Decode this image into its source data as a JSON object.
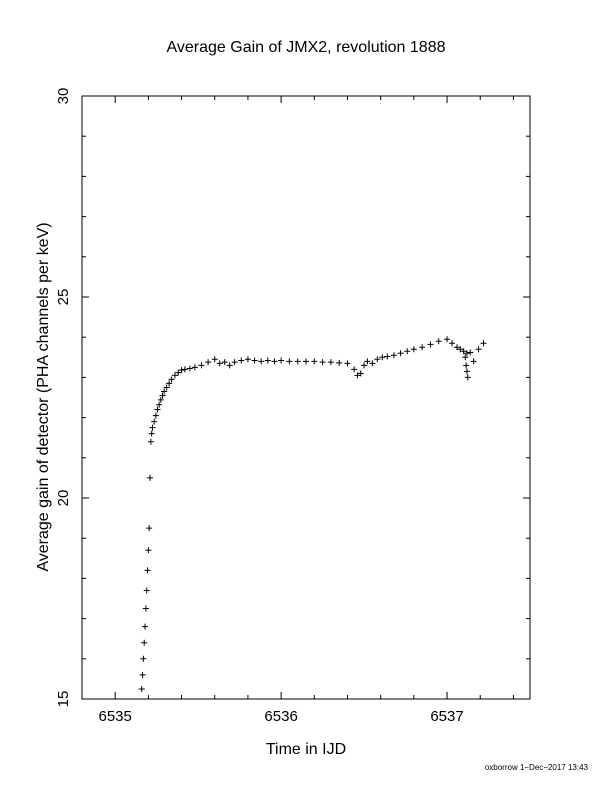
{
  "chart_data": {
    "type": "scatter",
    "title": "Average Gain of JMX2, revolution 1888",
    "xlabel": "Time in IJD",
    "ylabel": "Average gain of detector (PHA channels per keV)",
    "xlim": [
      6534.8,
      6537.5
    ],
    "ylim": [
      15,
      30
    ],
    "xticks": [
      6535,
      6536,
      6537
    ],
    "xtick_labels": [
      "6535",
      "6536",
      "6537"
    ],
    "yticks": [
      15,
      20,
      25,
      30
    ],
    "ytick_labels": [
      "15",
      "20",
      "25",
      "30"
    ],
    "marker": "plus",
    "grid": false,
    "color": "#000000",
    "series": [
      {
        "x": [
          6535.16,
          6535.165,
          6535.17,
          6535.175,
          6535.18,
          6535.185,
          6535.19,
          6535.195,
          6535.2,
          6535.205,
          6535.21,
          6535.215,
          6535.22,
          6535.225,
          6535.235,
          6535.245,
          6535.255,
          6535.265,
          6535.275,
          6535.285,
          6535.295,
          6535.31,
          6535.325,
          6535.34,
          6535.36,
          6535.38,
          6535.4,
          6535.42,
          6535.45,
          6535.48,
          6535.52,
          6535.56,
          6535.6,
          6535.63,
          6535.66,
          6535.69,
          6535.72,
          6535.76,
          6535.8,
          6535.84,
          6535.88,
          6535.92,
          6535.96,
          6536.0,
          6536.05,
          6536.1,
          6536.15,
          6536.2,
          6536.25,
          6536.3,
          6536.35,
          6536.4,
          6536.44,
          6536.46,
          6536.48,
          6536.5,
          6536.52,
          6536.55,
          6536.58,
          6536.61,
          6536.64,
          6536.68,
          6536.72,
          6536.76,
          6536.8,
          6536.85,
          6536.9,
          6536.95,
          6537.0,
          6537.03,
          6537.06,
          6537.08,
          6537.1,
          6537.12,
          6537.14,
          6537.11,
          6537.115,
          6537.12,
          6537.125,
          6537.16,
          6537.19,
          6537.22
        ],
        "y": [
          15.25,
          15.6,
          16.0,
          16.4,
          16.8,
          17.25,
          17.7,
          18.2,
          18.7,
          19.25,
          20.5,
          21.4,
          21.6,
          21.75,
          21.9,
          22.05,
          22.2,
          22.32,
          22.44,
          22.55,
          22.65,
          22.75,
          22.85,
          22.95,
          23.05,
          23.12,
          23.18,
          23.2,
          23.22,
          23.25,
          23.3,
          23.38,
          23.45,
          23.35,
          23.38,
          23.3,
          23.38,
          23.42,
          23.45,
          23.42,
          23.4,
          23.42,
          23.4,
          23.42,
          23.4,
          23.4,
          23.4,
          23.4,
          23.38,
          23.38,
          23.36,
          23.35,
          23.2,
          23.05,
          23.1,
          23.3,
          23.4,
          23.35,
          23.45,
          23.5,
          23.52,
          23.55,
          23.6,
          23.65,
          23.7,
          23.75,
          23.82,
          23.9,
          23.95,
          23.85,
          23.75,
          23.7,
          23.65,
          23.6,
          23.62,
          23.5,
          23.3,
          23.15,
          23.0,
          23.4,
          23.7,
          23.85
        ]
      }
    ]
  },
  "footer": {
    "text": "oxborrow 1−Dec−2017 13:43"
  }
}
